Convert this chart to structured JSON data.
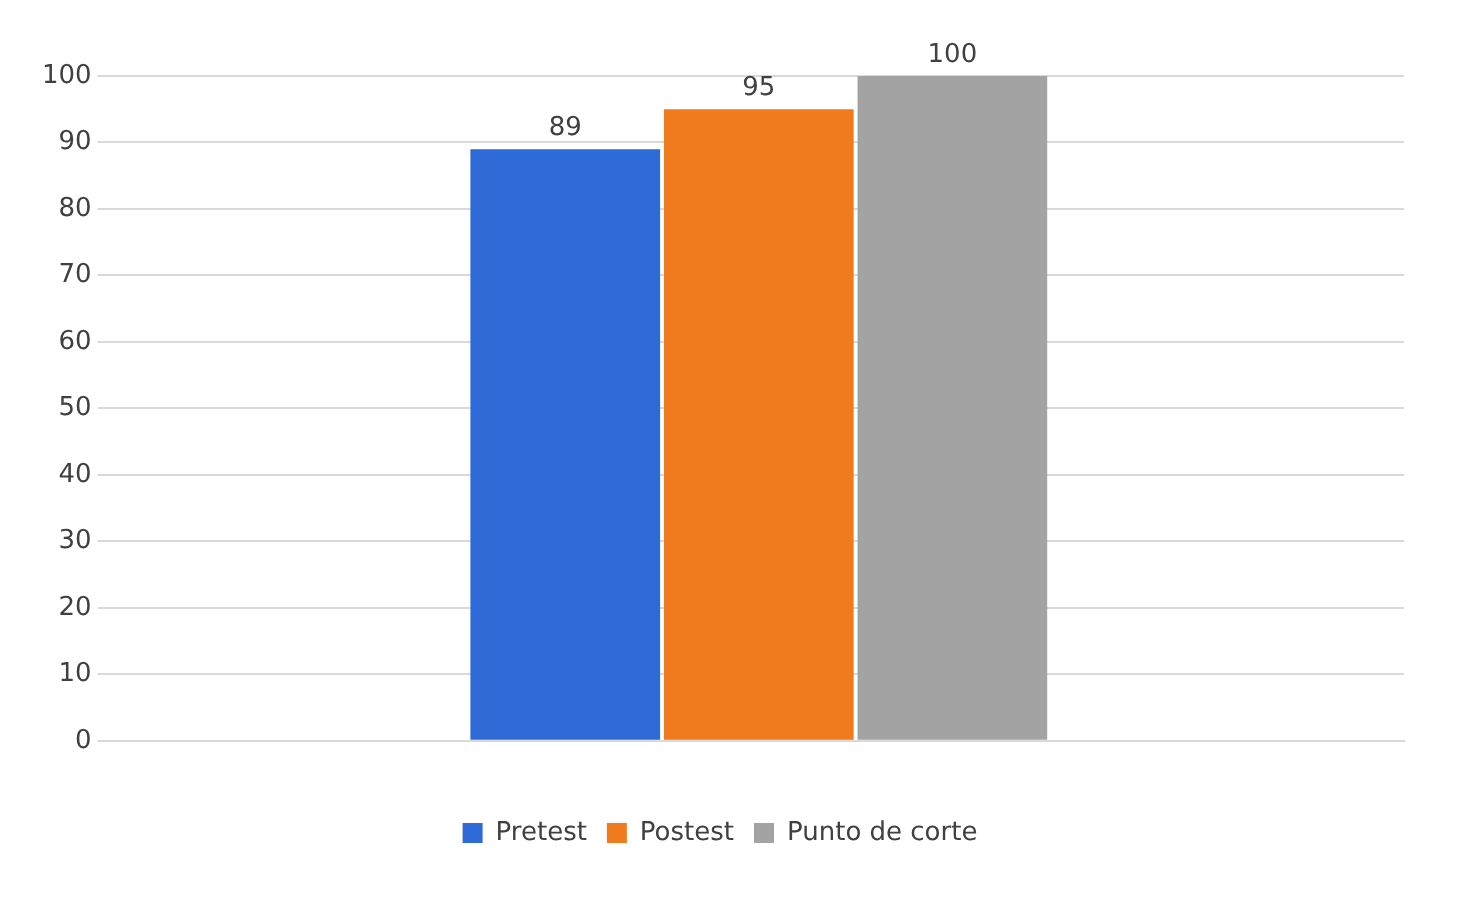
{
  "chart_data": {
    "type": "bar",
    "categories": [
      null
    ],
    "series": [
      {
        "name": "Pretest",
        "color": "#2e6ad6",
        "values": [
          89
        ]
      },
      {
        "name": "Postest",
        "color": "#f07a1e",
        "values": [
          95
        ]
      },
      {
        "name": "Punto de corte",
        "color": "#a3a3a3",
        "values": [
          100
        ]
      }
    ],
    "ylim": [
      0,
      100
    ],
    "yticks": [
      0,
      10,
      20,
      30,
      40,
      50,
      60,
      70,
      80,
      90,
      100
    ],
    "grid": "y",
    "legend": "bottom",
    "data_labels": true
  }
}
